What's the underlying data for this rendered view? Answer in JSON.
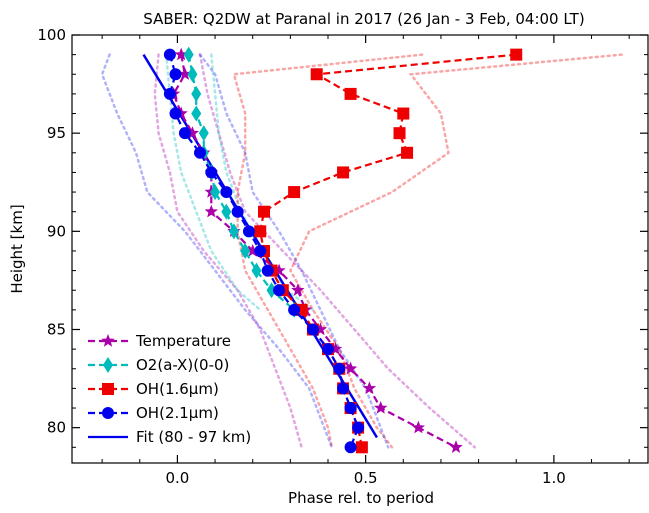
{
  "chart_data": {
    "type": "line",
    "title": "SABER: Q2DW at Paranal in 2017 (26 Jan - 3 Feb, 04:00 LT)",
    "xlabel": "Phase rel. to period",
    "ylabel": "Height [km]",
    "xlim": [
      -0.28,
      1.25
    ],
    "ylim": [
      78.2,
      100
    ],
    "xticks": [
      0.0,
      0.5,
      1.0
    ],
    "xtick_labels": [
      "0.0",
      "0.5",
      "1.0"
    ],
    "yticks": [
      80,
      85,
      90,
      95,
      100
    ],
    "ytick_labels": [
      "80",
      "85",
      "90",
      "95",
      "100"
    ],
    "grid": false,
    "legend_position": "lower-left",
    "series": [
      {
        "name": "Temperature",
        "color": "#aa00aa",
        "marker": "star",
        "line": "dashed",
        "points": [
          [
            0.01,
            99
          ],
          [
            0.02,
            98
          ],
          [
            -0.01,
            97
          ],
          [
            0.01,
            96
          ],
          [
            0.04,
            95
          ],
          [
            0.07,
            94
          ],
          [
            0.09,
            93
          ],
          [
            0.09,
            92
          ],
          [
            0.09,
            91
          ],
          [
            0.15,
            90
          ],
          [
            0.2,
            89
          ],
          [
            0.27,
            88
          ],
          [
            0.32,
            87
          ],
          [
            0.34,
            86
          ],
          [
            0.38,
            85
          ],
          [
            0.42,
            84
          ],
          [
            0.46,
            83
          ],
          [
            0.51,
            82
          ],
          [
            0.54,
            81
          ],
          [
            0.64,
            80
          ],
          [
            0.74,
            79
          ]
        ]
      },
      {
        "name": "O2(a-X)(0-0)",
        "color": "#00bbbb",
        "marker": "diamond",
        "line": "dashed",
        "points": [
          [
            0.03,
            99
          ],
          [
            0.04,
            98
          ],
          [
            0.05,
            97
          ],
          [
            0.05,
            96
          ],
          [
            0.07,
            95
          ],
          [
            0.07,
            94
          ],
          [
            0.09,
            93
          ],
          [
            0.1,
            92
          ],
          [
            0.13,
            91
          ],
          [
            0.15,
            90
          ],
          [
            0.18,
            89
          ],
          [
            0.21,
            88
          ],
          [
            0.25,
            87
          ],
          [
            0.31,
            86
          ]
        ]
      },
      {
        "name": "OH(1.6µm)",
        "color": "#ee0000",
        "marker": "square",
        "line": "dashed",
        "points": [
          [
            0.9,
            99
          ],
          [
            0.37,
            98
          ],
          [
            0.46,
            97
          ],
          [
            0.6,
            96
          ],
          [
            0.59,
            95
          ],
          [
            0.61,
            94
          ],
          [
            0.44,
            93
          ],
          [
            0.31,
            92
          ],
          [
            0.23,
            91
          ],
          [
            0.22,
            90
          ],
          [
            0.23,
            89
          ],
          [
            0.25,
            88
          ],
          [
            0.28,
            87
          ],
          [
            0.33,
            86
          ],
          [
            0.36,
            85
          ],
          [
            0.4,
            84
          ],
          [
            0.43,
            83
          ],
          [
            0.44,
            82
          ],
          [
            0.46,
            81
          ],
          [
            0.48,
            80
          ],
          [
            0.49,
            79
          ]
        ]
      },
      {
        "name": "OH(2.1µm)",
        "color": "#0000ee",
        "marker": "circle",
        "line": "dashed",
        "points": [
          [
            -0.02,
            99
          ],
          [
            -0.005,
            98
          ],
          [
            -0.02,
            97
          ],
          [
            -0.005,
            96
          ],
          [
            0.02,
            95
          ],
          [
            0.06,
            94
          ],
          [
            0.09,
            93
          ],
          [
            0.13,
            92
          ],
          [
            0.16,
            91
          ],
          [
            0.19,
            90
          ],
          [
            0.22,
            89
          ],
          [
            0.24,
            88
          ],
          [
            0.27,
            87
          ],
          [
            0.31,
            86
          ],
          [
            0.36,
            85
          ],
          [
            0.4,
            84
          ],
          [
            0.43,
            83
          ],
          [
            0.44,
            82
          ],
          [
            0.46,
            81
          ],
          [
            0.48,
            80
          ],
          [
            0.46,
            79
          ]
        ]
      }
    ],
    "fit": {
      "name": "Fit (80 - 97 km)",
      "color": "#0000ee",
      "points": [
        [
          -0.09,
          99
        ],
        [
          0.53,
          79.5
        ]
      ]
    },
    "envelopes": [
      {
        "color": "#aa00aa",
        "opacity": 0.35,
        "left": [
          [
            -0.05,
            99
          ],
          [
            -0.06,
            97
          ],
          [
            -0.05,
            95
          ],
          [
            -0.02,
            93
          ],
          [
            0.0,
            91
          ],
          [
            0.07,
            89
          ],
          [
            0.16,
            87
          ],
          [
            0.22,
            85
          ],
          [
            0.26,
            83
          ],
          [
            0.3,
            81
          ],
          [
            0.33,
            79
          ]
        ],
        "right": [
          [
            0.06,
            99
          ],
          [
            0.08,
            97
          ],
          [
            0.11,
            95
          ],
          [
            0.14,
            93
          ],
          [
            0.18,
            91
          ],
          [
            0.28,
            89
          ],
          [
            0.38,
            87
          ],
          [
            0.47,
            85
          ],
          [
            0.56,
            83
          ],
          [
            0.67,
            81
          ],
          [
            0.79,
            79
          ]
        ]
      },
      {
        "color": "#00bbbb",
        "opacity": 0.35,
        "left": [
          [
            -0.03,
            99
          ],
          [
            -0.02,
            97
          ],
          [
            -0.01,
            95
          ],
          [
            0.01,
            93
          ],
          [
            0.05,
            91
          ],
          [
            0.09,
            89
          ],
          [
            0.16,
            87
          ],
          [
            0.22,
            86
          ]
        ],
        "right": [
          [
            0.09,
            99
          ],
          [
            0.1,
            97
          ],
          [
            0.11,
            95
          ],
          [
            0.13,
            93
          ],
          [
            0.17,
            91
          ],
          [
            0.22,
            89
          ],
          [
            0.29,
            87
          ],
          [
            0.36,
            86
          ]
        ]
      },
      {
        "color": "#ee0000",
        "opacity": 0.35,
        "left": [
          [
            0.65,
            99
          ],
          [
            0.15,
            98
          ],
          [
            0.18,
            96
          ],
          [
            0.18,
            94
          ],
          [
            0.16,
            92
          ],
          [
            0.16,
            90
          ],
          [
            0.18,
            88
          ],
          [
            0.24,
            86
          ],
          [
            0.3,
            84
          ],
          [
            0.36,
            82
          ],
          [
            0.4,
            80
          ],
          [
            0.41,
            79
          ]
        ],
        "right": [
          [
            1.18,
            99
          ],
          [
            0.62,
            98
          ],
          [
            0.7,
            96
          ],
          [
            0.72,
            94
          ],
          [
            0.57,
            92
          ],
          [
            0.35,
            90
          ],
          [
            0.3,
            88
          ],
          [
            0.36,
            86
          ],
          [
            0.43,
            84
          ],
          [
            0.47,
            82
          ],
          [
            0.53,
            80
          ],
          [
            0.57,
            79
          ]
        ]
      },
      {
        "color": "#0000ee",
        "opacity": 0.3,
        "left": [
          [
            -0.18,
            99
          ],
          [
            -0.2,
            98
          ],
          [
            -0.16,
            96
          ],
          [
            -0.11,
            94
          ],
          [
            -0.08,
            92
          ],
          [
            0.02,
            90
          ],
          [
            0.1,
            88
          ],
          [
            0.18,
            86
          ],
          [
            0.27,
            84
          ],
          [
            0.35,
            82
          ],
          [
            0.39,
            80
          ],
          [
            0.41,
            79
          ]
        ],
        "right": [
          [
            0.06,
            99
          ],
          [
            0.1,
            98
          ],
          [
            0.13,
            96
          ],
          [
            0.18,
            94
          ],
          [
            0.2,
            92
          ],
          [
            0.27,
            90
          ],
          [
            0.33,
            88
          ],
          [
            0.38,
            86
          ],
          [
            0.43,
            84
          ],
          [
            0.5,
            82
          ],
          [
            0.54,
            80
          ],
          [
            0.56,
            79
          ]
        ]
      }
    ]
  }
}
